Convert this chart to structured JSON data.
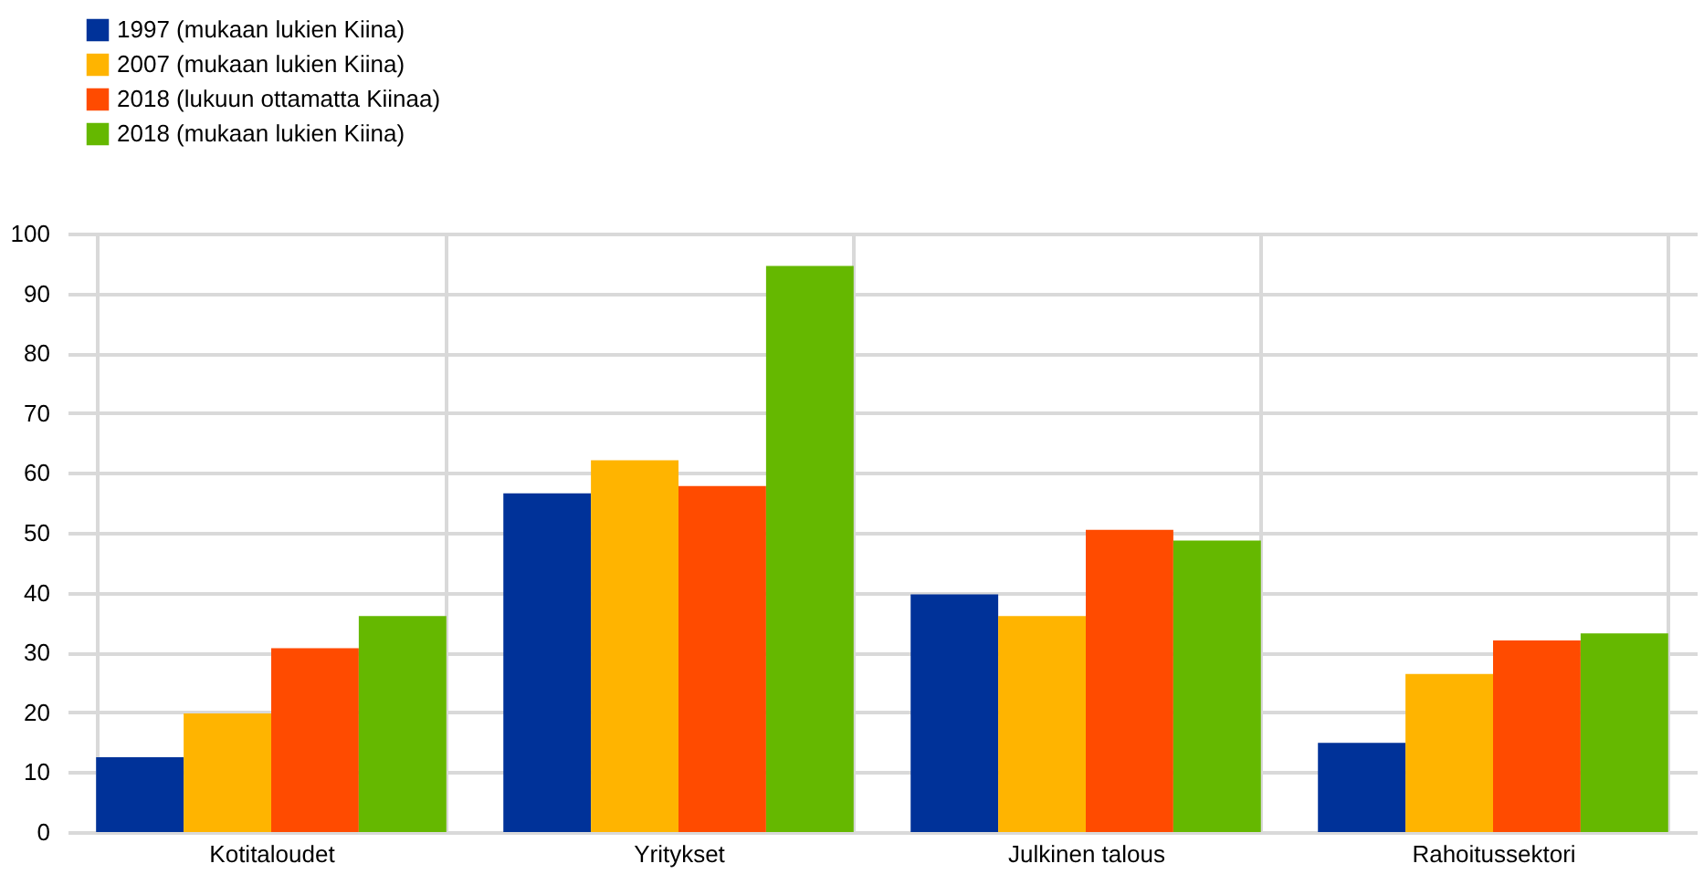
{
  "chart_data": {
    "type": "bar",
    "categories": [
      "Kotitaloudet",
      "Yritykset",
      "Julkinen talous",
      "Rahoitussektori"
    ],
    "series": [
      {
        "name": "1997 (mukaan lukien Kiina)",
        "color": "#003299",
        "values": [
          12.5,
          56.6,
          39.7,
          14.9
        ]
      },
      {
        "name": "2007 (mukaan lukien Kiina)",
        "color": "#ffb400",
        "values": [
          19.8,
          62.1,
          36.1,
          26.4
        ]
      },
      {
        "name": "2018 (lukuun ottamatta Kiinaa)",
        "color": "#ff4b00",
        "values": [
          30.7,
          57.8,
          50.5,
          32.0
        ]
      },
      {
        "name": "2018 (mukaan lukien Kiina)",
        "color": "#65b800",
        "values": [
          36.1,
          94.6,
          48.7,
          33.2
        ]
      }
    ],
    "ylim": [
      0,
      100
    ],
    "yticks": [
      0,
      10,
      20,
      30,
      40,
      50,
      60,
      70,
      80,
      90,
      100
    ],
    "grid": true,
    "legend": "top left"
  }
}
